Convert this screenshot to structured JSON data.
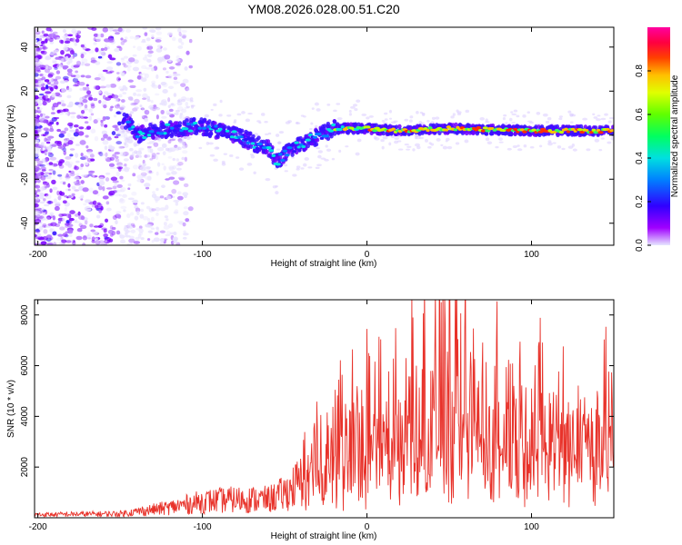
{
  "title": "YM08.2026.028.00.51.C20",
  "chart_data": [
    {
      "type": "heatmap",
      "name": "spectrogram",
      "xlabel": "Height of straight line (km)",
      "ylabel": "Frequency (Hz)",
      "xlim": [
        -202,
        150
      ],
      "ylim": [
        -50,
        49
      ],
      "xticks": [
        -200,
        -100,
        0,
        100
      ],
      "yticks": [
        -40,
        -20,
        0,
        20,
        40
      ],
      "ridge": {
        "description_points": [
          [
            -145,
            6
          ],
          [
            -140,
            0
          ],
          [
            -120,
            3
          ],
          [
            -100,
            4
          ],
          [
            -80,
            0
          ],
          [
            -60,
            -6
          ],
          [
            -55,
            -12
          ],
          [
            -45,
            -6
          ],
          [
            -35,
            -2
          ],
          [
            -20,
            3
          ],
          [
            0,
            3
          ],
          [
            20,
            2
          ],
          [
            50,
            3
          ],
          [
            100,
            2
          ],
          [
            150,
            2
          ]
        ]
      },
      "colorbar": {
        "label": "Normalized spectral amplitude",
        "range": [
          0.0,
          1.0
        ],
        "ticks": [
          "0.0",
          "0.2",
          "0.4",
          "0.6",
          "0.8"
        ],
        "tick_values": [
          0.0,
          0.2,
          0.4,
          0.6,
          0.8
        ]
      }
    },
    {
      "type": "line",
      "name": "snr",
      "xlabel": "Height of straight line (km)",
      "ylabel": "SNR (10 * v/v)",
      "xlim": [
        -202,
        150
      ],
      "ylim": [
        0,
        8600
      ],
      "xticks": [
        -200,
        -100,
        0,
        100
      ],
      "yticks": [
        2000,
        4000,
        6000,
        8000
      ],
      "color": "#e8322a",
      "envelope": [
        [
          -200,
          150
        ],
        [
          -150,
          200
        ],
        [
          -120,
          500
        ],
        [
          -100,
          800
        ],
        [
          -80,
          900
        ],
        [
          -60,
          900
        ],
        [
          -50,
          1200
        ],
        [
          -40,
          1800
        ],
        [
          -30,
          2800
        ],
        [
          -20,
          3000
        ],
        [
          0,
          3600
        ],
        [
          20,
          4200
        ],
        [
          40,
          4700
        ],
        [
          60,
          4500
        ],
        [
          80,
          4000
        ],
        [
          100,
          3800
        ],
        [
          120,
          3700
        ],
        [
          150,
          3700
        ]
      ],
      "peaks": [
        [
          -30,
          3600
        ],
        [
          -10,
          4200
        ],
        [
          28,
          7900
        ],
        [
          45,
          8500
        ],
        [
          50,
          8600
        ],
        [
          30,
          6000
        ],
        [
          70,
          5500
        ],
        [
          100,
          5100
        ],
        [
          140,
          5000
        ]
      ]
    }
  ]
}
